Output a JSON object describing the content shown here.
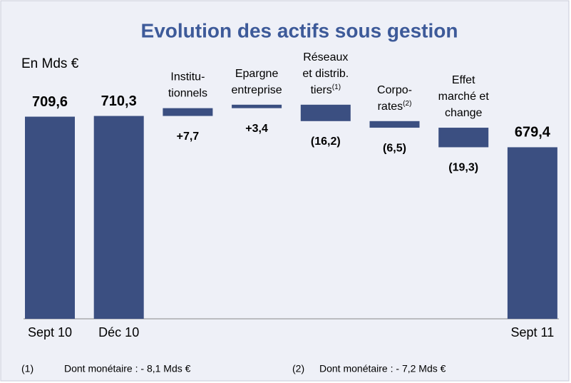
{
  "chart_data": {
    "type": "waterfall",
    "title": "Evolution des actifs sous gestion",
    "unit_label": "En Mds €",
    "categories": [
      [
        "Sept 10"
      ],
      [
        "Déc 10"
      ],
      [
        "Institu-",
        "tionnels"
      ],
      [
        "Epargne",
        "entreprise"
      ],
      [
        "Réseaux",
        "et distrib.",
        "tiers"
      ],
      [
        "Corpo-",
        "rates"
      ],
      [
        "Effet",
        "marché et",
        "change"
      ],
      [
        "Sept 11"
      ]
    ],
    "category_notes": [
      null,
      null,
      null,
      null,
      "(1)",
      "(2)",
      null,
      null
    ],
    "totals": [
      true,
      true,
      false,
      false,
      false,
      false,
      false,
      true
    ],
    "values": [
      709.6,
      710.3,
      7.7,
      3.4,
      -16.2,
      -6.5,
      -19.3,
      679.4
    ],
    "value_labels": [
      "709,6",
      "710,3",
      "+7,7",
      "+3,4",
      "(16,2)",
      "(6,5)",
      "(19,3)",
      "679,4"
    ],
    "color": "#3b4f81",
    "ylim": [
      510,
      730
    ],
    "footnotes": [
      {
        "mark": "(1)",
        "text": "Dont monétaire : - 8,1  Mds €"
      },
      {
        "mark": "(2)",
        "text": "Dont monétaire : - 7,2 Mds €"
      }
    ]
  }
}
